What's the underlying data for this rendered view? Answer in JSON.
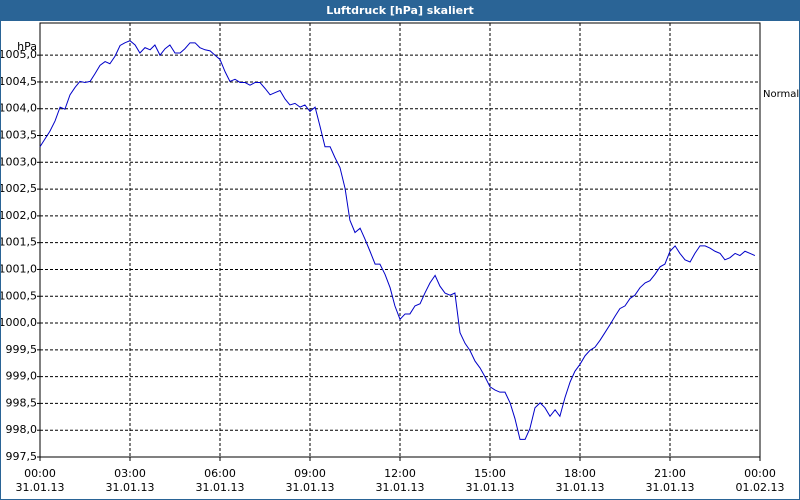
{
  "chart_data": {
    "type": "line",
    "title": "Luftdruck [hPa] skaliert",
    "ylabel": "hPa",
    "x": [
      0,
      0.17,
      0.33,
      0.5,
      0.67,
      0.83,
      1,
      1.17,
      1.33,
      1.5,
      1.67,
      1.83,
      2,
      2.17,
      2.33,
      2.5,
      2.67,
      2.83,
      3,
      3.17,
      3.33,
      3.5,
      3.67,
      3.83,
      4,
      4.17,
      4.33,
      4.5,
      4.67,
      4.83,
      5,
      5.17,
      5.33,
      5.5,
      5.67,
      5.83,
      6,
      6.17,
      6.33,
      6.5,
      6.67,
      6.83,
      7,
      7.17,
      7.33,
      7.5,
      7.67,
      7.83,
      8,
      8.17,
      8.33,
      8.5,
      8.67,
      8.83,
      9,
      9.17,
      9.33,
      9.5,
      9.67,
      9.83,
      10,
      10.17,
      10.33,
      10.5,
      10.67,
      10.83,
      11,
      11.17,
      11.33,
      11.5,
      11.67,
      11.83,
      12,
      12.17,
      12.33,
      12.5,
      12.67,
      12.83,
      13,
      13.17,
      13.33,
      13.5,
      13.67,
      13.83,
      14,
      14.17,
      14.33,
      14.5,
      14.67,
      14.83,
      15,
      15.17,
      15.33,
      15.5,
      15.67,
      15.83,
      16,
      16.17,
      16.33,
      16.5,
      16.67,
      16.83,
      17,
      17.17,
      17.33,
      17.5,
      17.67,
      17.83,
      18,
      18.17,
      18.33,
      18.5,
      18.67,
      18.83,
      19,
      19.17,
      19.33,
      19.5,
      19.67,
      19.83,
      20,
      20.17,
      20.33,
      20.5,
      20.67,
      20.83,
      21,
      21.17,
      21.33,
      21.5,
      21.67,
      21.83,
      22,
      22.17,
      22.33,
      22.5,
      22.67,
      22.83,
      23,
      23.17,
      23.33,
      23.5,
      23.67,
      23.83
    ],
    "series": [
      {
        "name": "Normal",
        "color": "#0000c8",
        "values": [
          1003.29,
          1003.44,
          1003.58,
          1003.77,
          1004.03,
          1003.99,
          1004.26,
          1004.4,
          1004.51,
          1004.49,
          1004.51,
          1004.65,
          1004.81,
          1004.88,
          1004.84,
          1004.98,
          1005.18,
          1005.23,
          1005.27,
          1005.19,
          1005.04,
          1005.14,
          1005.1,
          1005.19,
          1005.0,
          1005.12,
          1005.19,
          1005.04,
          1005.04,
          1005.12,
          1005.23,
          1005.23,
          1005.14,
          1005.1,
          1005.08,
          1005.0,
          1004.92,
          1004.69,
          1004.51,
          1004.55,
          1004.49,
          1004.49,
          1004.44,
          1004.49,
          1004.49,
          1004.38,
          1004.26,
          1004.3,
          1004.34,
          1004.18,
          1004.07,
          1004.1,
          1004.03,
          1004.07,
          1003.95,
          1004.03,
          1003.68,
          1003.29,
          1003.29,
          1003.09,
          1002.9,
          1002.51,
          1001.92,
          1001.69,
          1001.77,
          1001.57,
          1001.34,
          1001.1,
          1001.1,
          1000.91,
          1000.66,
          1000.32,
          1000.07,
          1000.17,
          1000.17,
          1000.32,
          1000.36,
          1000.56,
          1000.75,
          1000.89,
          1000.69,
          1000.56,
          1000.52,
          1000.56,
          999.82,
          999.62,
          999.49,
          999.29,
          999.16,
          999.0,
          998.81,
          998.75,
          998.71,
          998.71,
          998.51,
          998.22,
          997.83,
          997.83,
          998.03,
          998.42,
          998.51,
          998.42,
          998.26,
          998.38,
          998.26,
          998.61,
          998.9,
          999.1,
          999.23,
          999.39,
          999.49,
          999.55,
          999.68,
          999.82,
          999.97,
          1000.13,
          1000.27,
          1000.32,
          1000.46,
          1000.52,
          1000.66,
          1000.75,
          1000.79,
          1000.91,
          1001.05,
          1001.1,
          1001.34,
          1001.44,
          1001.3,
          1001.18,
          1001.14,
          1001.3,
          1001.44,
          1001.44,
          1001.4,
          1001.34,
          1001.3,
          1001.18,
          1001.22,
          1001.3,
          1001.26,
          1001.34,
          1001.3,
          1001.26
        ]
      }
    ],
    "xlim": [
      0,
      24
    ],
    "xticks": [
      {
        "value": 0,
        "label": "00:00\n31.01.13"
      },
      {
        "value": 3,
        "label": "03:00\n31.01.13"
      },
      {
        "value": 6,
        "label": "06:00\n31.01.13"
      },
      {
        "value": 9,
        "label": "09:00\n31.01.13"
      },
      {
        "value": 12,
        "label": "12:00\n31.01.13"
      },
      {
        "value": 15,
        "label": "15:00\n31.01.13"
      },
      {
        "value": 18,
        "label": "18:00\n31.01.13"
      },
      {
        "value": 21,
        "label": "21:00\n31.01.13"
      },
      {
        "value": 24,
        "label": "00:00\n01.02.13"
      }
    ],
    "ylim": [
      997.5,
      1005.6
    ],
    "yticks": [
      {
        "value": 997.5,
        "label": "997,5"
      },
      {
        "value": 998,
        "label": "998,0"
      },
      {
        "value": 998.5,
        "label": "998,5"
      },
      {
        "value": 999,
        "label": "999,0"
      },
      {
        "value": 999.5,
        "label": "999,5"
      },
      {
        "value": 1000,
        "label": "1000,0"
      },
      {
        "value": 1000.5,
        "label": "1000,5"
      },
      {
        "value": 1001,
        "label": "1001,0"
      },
      {
        "value": 1001.5,
        "label": "1001,5"
      },
      {
        "value": 1002,
        "label": "1002,0"
      },
      {
        "value": 1002.5,
        "label": "1002,5"
      },
      {
        "value": 1003,
        "label": "1003,0"
      },
      {
        "value": 1003.5,
        "label": "1003,5"
      },
      {
        "value": 1004,
        "label": "1004,0"
      },
      {
        "value": 1004.5,
        "label": "1004,5"
      },
      {
        "value": 1005,
        "label": "1005,0"
      }
    ],
    "grid": true
  }
}
